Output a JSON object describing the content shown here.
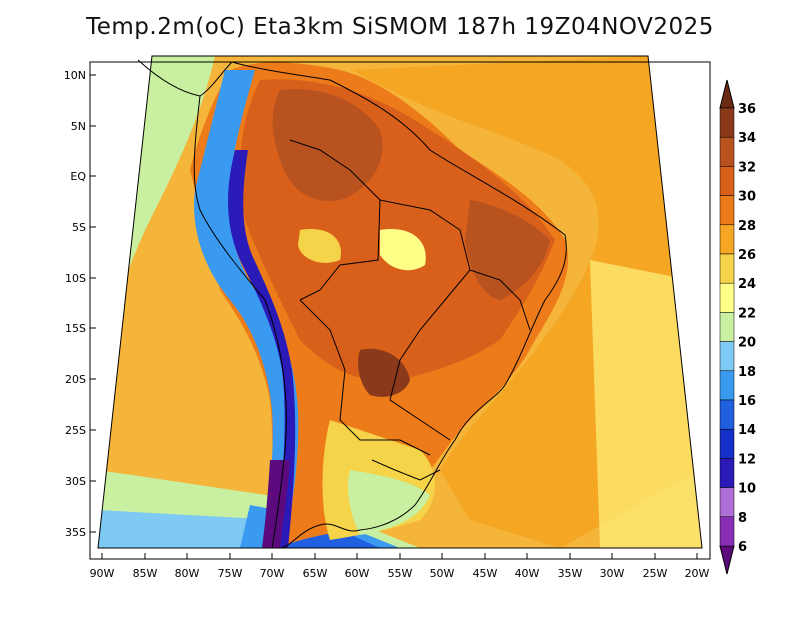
{
  "title": "Temp.2m(oC) Eta3km SiSMOM 187h 19Z04NOV2025",
  "lat_labels": [
    "10N",
    "5N",
    "EQ",
    "5S",
    "10S",
    "15S",
    "20S",
    "25S",
    "30S",
    "35S"
  ],
  "lon_labels": [
    "90W",
    "85W",
    "80W",
    "75W",
    "70W",
    "65W",
    "60W",
    "55W",
    "50W",
    "45W",
    "40W",
    "35W",
    "30W",
    "25W",
    "20W"
  ],
  "colorbar": {
    "ticks": [
      "6",
      "8",
      "10",
      "12",
      "14",
      "16",
      "18",
      "20",
      "22",
      "24",
      "26",
      "28",
      "30",
      "32",
      "34",
      "36"
    ],
    "colors": [
      "#5c0a7e",
      "#8a2eb5",
      "#b06fd6",
      "#2a1ab8",
      "#1530c8",
      "#1f5fe0",
      "#3a9af0",
      "#7fcaf5",
      "#c8f0a0",
      "#ffff88",
      "#f5d44a",
      "#f5a623",
      "#ee7b1a",
      "#d9601a",
      "#b8521f",
      "#8a3a1a",
      "#6b2a14"
    ]
  },
  "icons": {
    "up_arrow": "triangle-up",
    "down_arrow": "triangle-down"
  }
}
